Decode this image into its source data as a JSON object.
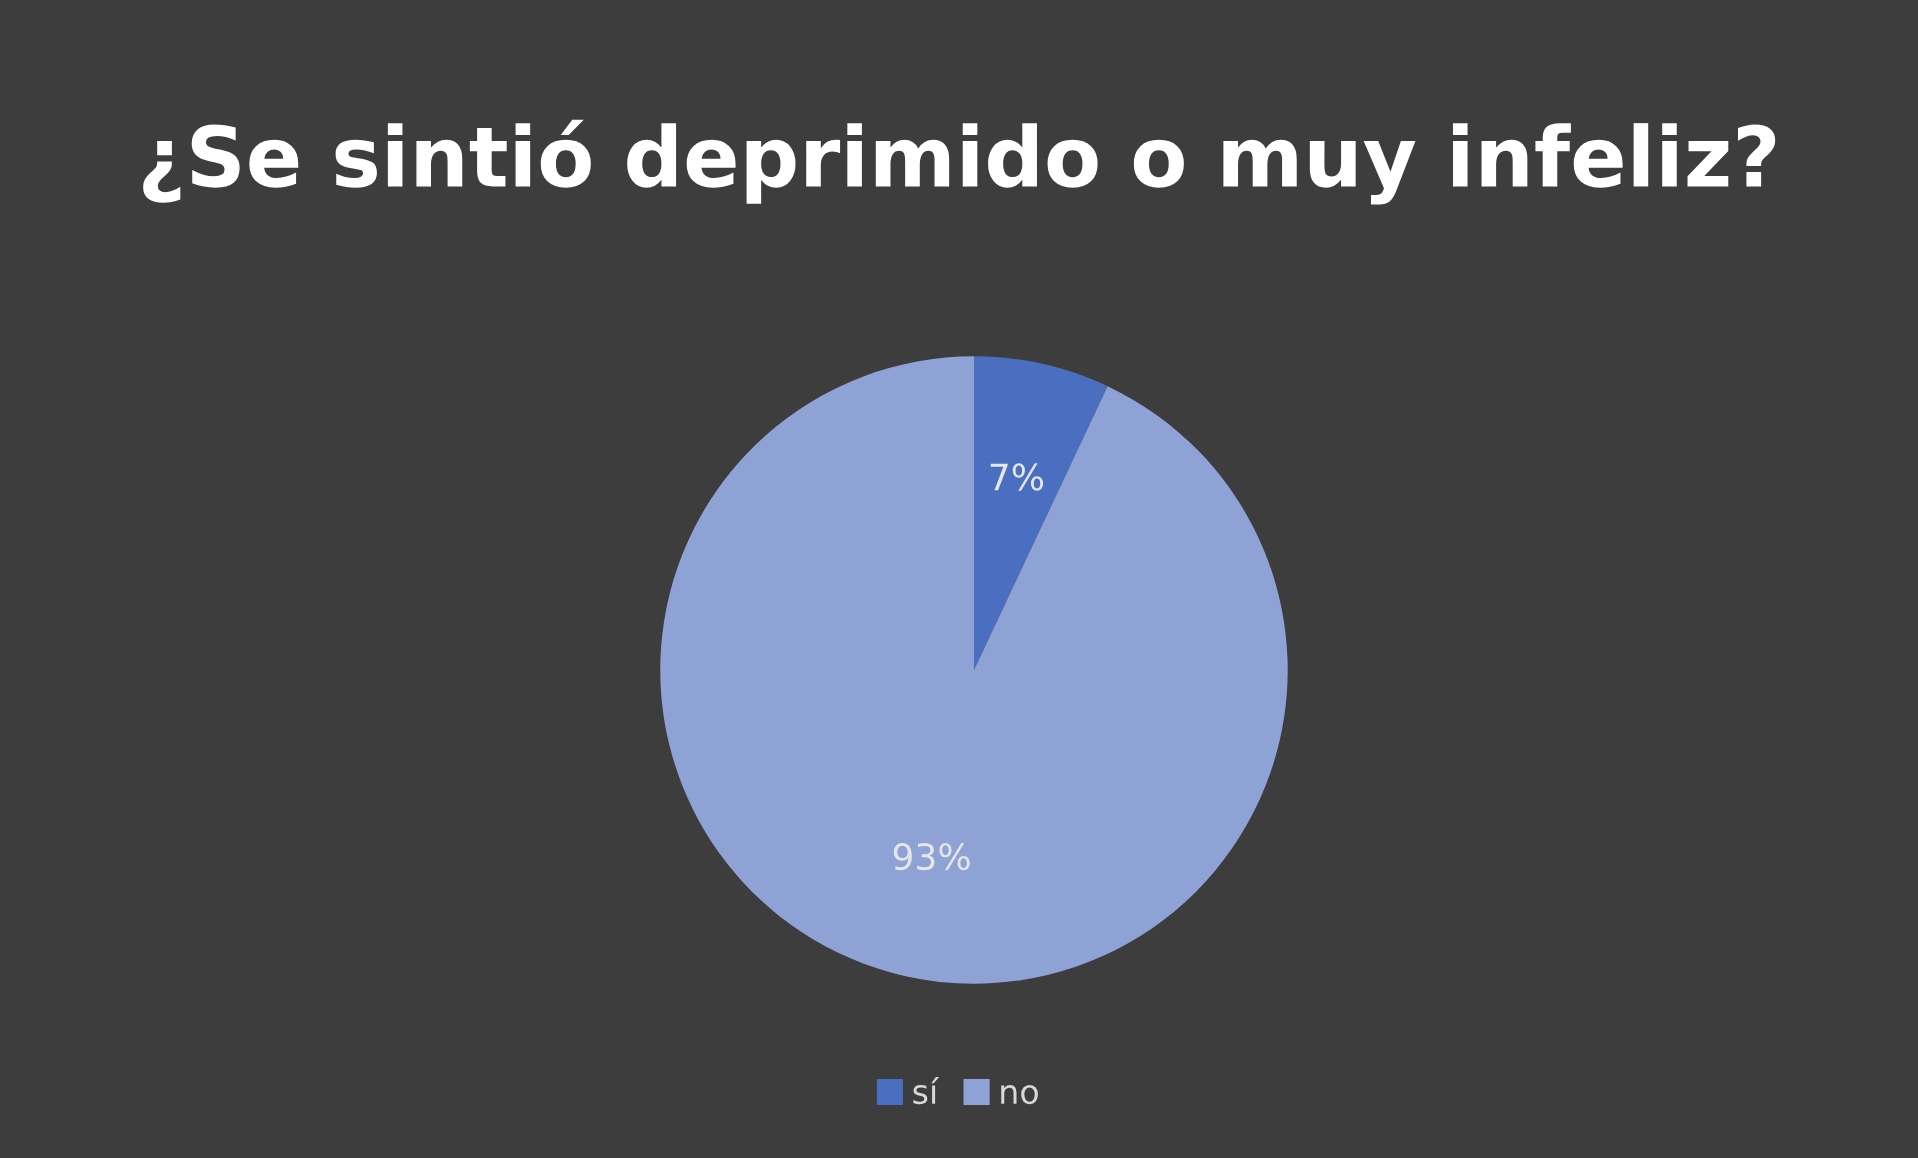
{
  "chart_data": {
    "type": "pie",
    "title": "¿Se sintió deprimido o muy infeliz?",
    "categories": [
      "sí",
      "no"
    ],
    "values": [
      7,
      93
    ],
    "colors": [
      "#4a6fc0",
      "#8fa2d6"
    ],
    "value_labels": [
      "7%",
      "93%"
    ],
    "legend": "bottom"
  }
}
